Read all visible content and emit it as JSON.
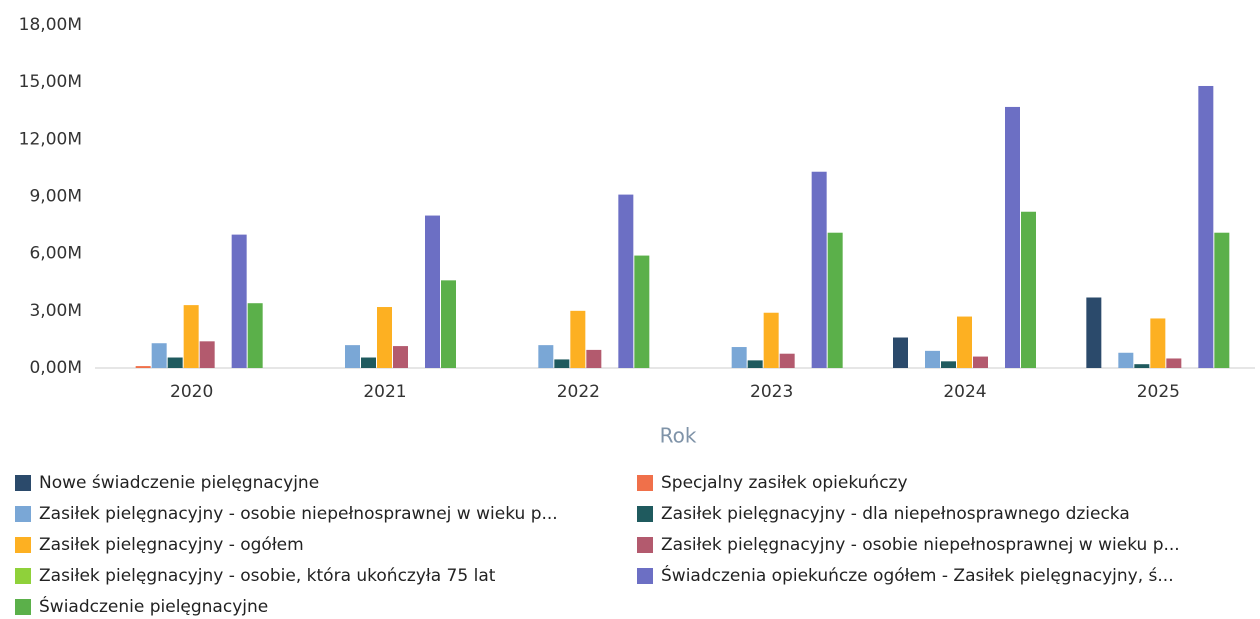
{
  "chart_data": {
    "type": "bar",
    "x_label": "Rok",
    "categories": [
      "2020",
      "2021",
      "2022",
      "2023",
      "2024",
      "2025"
    ],
    "ylim": [
      0,
      18
    ],
    "yticks": [
      {
        "value": 0,
        "label": "0,00M"
      },
      {
        "value": 3,
        "label": "3,00M"
      },
      {
        "value": 6,
        "label": "6,00M"
      },
      {
        "value": 9,
        "label": "9,00M"
      },
      {
        "value": 12,
        "label": "12,00M"
      },
      {
        "value": 15,
        "label": "15,00M"
      },
      {
        "value": 18,
        "label": "18,00M"
      }
    ],
    "grid": false,
    "series": [
      {
        "name": "Nowe świadczenie pielęgnacyjne",
        "color": "#2b4a6b",
        "values": [
          0,
          0,
          0,
          0,
          1.6,
          3.7
        ]
      },
      {
        "name": "Specjalny zasiłek opiekuńczy",
        "color": "#f0704a",
        "values": [
          0.1,
          0,
          0,
          0,
          0,
          0
        ]
      },
      {
        "name": "Zasiłek pielęgnacyjny -  osobie niepełnosprawnej w wieku p...",
        "color": "#7aa7d6",
        "values": [
          1.3,
          1.2,
          1.2,
          1.1,
          0.9,
          0.8
        ]
      },
      {
        "name": "Zasiłek pielęgnacyjny - dla niepełnosprawnego dziecka",
        "color": "#1f5a5e",
        "values": [
          0.55,
          0.55,
          0.45,
          0.4,
          0.35,
          0.2
        ]
      },
      {
        "name": "Zasiłek pielęgnacyjny - ogółem",
        "color": "#fdb022",
        "values": [
          3.3,
          3.2,
          3.0,
          2.9,
          2.7,
          2.6
        ]
      },
      {
        "name": "Zasiłek pielęgnacyjny - osobie niepełnosprawnej w wieku p...",
        "color": "#b35a6e",
        "values": [
          1.4,
          1.15,
          0.95,
          0.75,
          0.6,
          0.5
        ]
      },
      {
        "name": "Zasiłek pielęgnacyjny - osobie, która ukończyła 75 lat",
        "color": "#8fd13a",
        "values": [
          0,
          0,
          0,
          0,
          0,
          0
        ]
      },
      {
        "name": "Świadczenia opiekuńcze ogółem - Zasiłek pielęgnacyjny, ś...",
        "color": "#6c6fc4",
        "values": [
          7.0,
          8.0,
          9.1,
          10.3,
          13.7,
          14.8
        ]
      },
      {
        "name": "Świadczenie pielęgnacyjne",
        "color": "#5bb04a",
        "values": [
          3.4,
          4.6,
          5.9,
          7.1,
          8.2,
          7.1
        ]
      }
    ]
  }
}
